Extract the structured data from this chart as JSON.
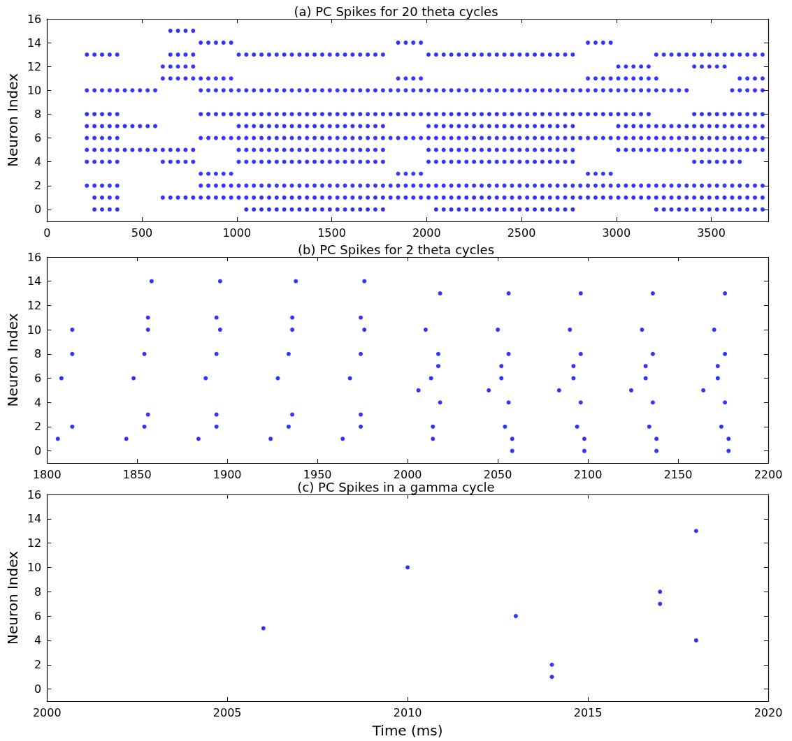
{
  "chart_data": [
    {
      "type": "scatter",
      "title": "(a) PC Spikes for 20 theta cycles",
      "ylabel": "Neuron Index",
      "xlim": [
        0,
        3800
      ],
      "xticks": [
        0,
        500,
        1000,
        1500,
        2000,
        2500,
        3000,
        3500
      ],
      "ylim": [
        -1,
        16
      ],
      "yticks": [
        0,
        2,
        4,
        6,
        8,
        10,
        12,
        14,
        16
      ],
      "grid": false,
      "marker": "circle",
      "series": [
        {
          "color": "#0000ff",
          "x": [
            650,
            690,
            730,
            770
          ],
          "values": [
            15,
            15,
            15,
            15
          ]
        },
        {
          "color": "#0000ff",
          "x": [
            810,
            850,
            890,
            930,
            970,
            1850,
            1890,
            1930,
            1970,
            2850,
            2890,
            2930,
            2970
          ],
          "values": [
            14,
            14,
            14,
            14,
            14,
            14,
            14,
            14,
            14,
            14,
            14,
            14,
            14
          ]
        },
        {
          "color": "#0000ff",
          "x": [
            210,
            250,
            290,
            330,
            370,
            650,
            690,
            730,
            770,
            1010,
            1050,
            1090,
            1130,
            1170,
            1210,
            1250,
            1290,
            1330,
            1370,
            1410,
            1450,
            1490,
            1530,
            1570,
            1610,
            1650,
            1690,
            1730,
            1770,
            2010,
            2050,
            2090,
            2130,
            2170,
            2210,
            2250,
            2290,
            2330,
            2370,
            2410,
            2450,
            2490,
            2530,
            2570,
            2610,
            2650,
            2690,
            2730,
            2770,
            3210,
            3250,
            3290,
            3330,
            3370,
            3410,
            3450,
            3490,
            3530,
            3570,
            3610,
            3650,
            3690,
            3730,
            3770
          ],
          "values": [
            13,
            13,
            13,
            13,
            13,
            13,
            13,
            13,
            13,
            13,
            13,
            13,
            13,
            13,
            13,
            13,
            13,
            13,
            13,
            13,
            13,
            13,
            13,
            13,
            13,
            13,
            13,
            13,
            13,
            13,
            13,
            13,
            13,
            13,
            13,
            13,
            13,
            13,
            13,
            13,
            13,
            13,
            13,
            13,
            13,
            13,
            13,
            13,
            13,
            13,
            13,
            13,
            13,
            13,
            13,
            13,
            13,
            13,
            13,
            13,
            13,
            13,
            13,
            13
          ]
        },
        {
          "color": "#0000ff",
          "x": [
            610,
            650,
            690,
            730,
            770,
            3010,
            3050,
            3090,
            3130,
            3170,
            3410,
            3450,
            3490,
            3530,
            3570
          ],
          "values": [
            12,
            12,
            12,
            12,
            12,
            12,
            12,
            12,
            12,
            12,
            12,
            12,
            12,
            12,
            12
          ]
        },
        {
          "color": "#0000ff",
          "x": [
            610,
            650,
            690,
            730,
            770,
            810,
            850,
            890,
            930,
            970,
            1850,
            1890,
            1930,
            1970,
            2850,
            2890,
            2930,
            2970,
            3010,
            3050,
            3090,
            3130,
            3170,
            3210,
            3650,
            3690,
            3730,
            3770
          ],
          "values": [
            11,
            11,
            11,
            11,
            11,
            11,
            11,
            11,
            11,
            11,
            11,
            11,
            11,
            11,
            11,
            11,
            11,
            11,
            11,
            11,
            11,
            11,
            11,
            11,
            11,
            11,
            11,
            11
          ]
        },
        {
          "color": "#0000ff",
          "x": [
            210,
            250,
            290,
            330,
            370,
            410,
            450,
            490,
            530,
            570,
            810,
            850,
            890,
            930,
            970,
            1010,
            1050,
            1090,
            1130,
            1170,
            1210,
            1250,
            1290,
            1330,
            1370,
            1410,
            1450,
            1490,
            1530,
            1570,
            1610,
            1650,
            1690,
            1730,
            1770,
            1810,
            1850,
            1890,
            1930,
            1970,
            2010,
            2050,
            2090,
            2130,
            2170,
            2210,
            2250,
            2290,
            2330,
            2370,
            2410,
            2450,
            2490,
            2530,
            2570,
            2610,
            2650,
            2690,
            2730,
            2770,
            2810,
            2850,
            2890,
            2930,
            2970,
            3010,
            3050,
            3090,
            3130,
            3170,
            3210,
            3250,
            3290,
            3330,
            3370,
            3610,
            3650,
            3690,
            3730,
            3770
          ],
          "values": [
            10,
            10,
            10,
            10,
            10,
            10,
            10,
            10,
            10,
            10,
            10,
            10,
            10,
            10,
            10,
            10,
            10,
            10,
            10,
            10,
            10,
            10,
            10,
            10,
            10,
            10,
            10,
            10,
            10,
            10,
            10,
            10,
            10,
            10,
            10,
            10,
            10,
            10,
            10,
            10,
            10,
            10,
            10,
            10,
            10,
            10,
            10,
            10,
            10,
            10,
            10,
            10,
            10,
            10,
            10,
            10,
            10,
            10,
            10,
            10,
            10,
            10,
            10,
            10,
            10,
            10,
            10,
            10,
            10,
            10,
            10,
            10,
            10,
            10,
            10,
            10,
            10,
            10,
            10,
            10
          ]
        },
        {
          "color": "#0000ff",
          "x": [
            210,
            250,
            290,
            330,
            370,
            810,
            850,
            890,
            930,
            970,
            1010,
            1050,
            1090,
            1130,
            1170,
            1210,
            1250,
            1290,
            1330,
            1370,
            1410,
            1450,
            1490,
            1530,
            1570,
            1610,
            1650,
            1690,
            1730,
            1770,
            1810,
            1850,
            1890,
            1930,
            1970,
            2010,
            2050,
            2090,
            2130,
            2170,
            2210,
            2250,
            2290,
            2330,
            2370,
            2410,
            2450,
            2490,
            2530,
            2570,
            2610,
            2650,
            2690,
            2730,
            2770,
            2810,
            2850,
            2890,
            2930,
            2970,
            3010,
            3050,
            3090,
            3130,
            3170,
            3410,
            3450,
            3490,
            3530,
            3570,
            3610,
            3650,
            3690,
            3730,
            3770
          ],
          "values": [
            8,
            8,
            8,
            8,
            8,
            8,
            8,
            8,
            8,
            8,
            8,
            8,
            8,
            8,
            8,
            8,
            8,
            8,
            8,
            8,
            8,
            8,
            8,
            8,
            8,
            8,
            8,
            8,
            8,
            8,
            8,
            8,
            8,
            8,
            8,
            8,
            8,
            8,
            8,
            8,
            8,
            8,
            8,
            8,
            8,
            8,
            8,
            8,
            8,
            8,
            8,
            8,
            8,
            8,
            8,
            8,
            8,
            8,
            8,
            8,
            8,
            8,
            8,
            8,
            8,
            8,
            8,
            8,
            8,
            8,
            8,
            8,
            8,
            8,
            8
          ]
        },
        {
          "color": "#0000ff",
          "x": [
            210,
            250,
            290,
            330,
            370,
            410,
            450,
            490,
            530,
            570,
            1010,
            1050,
            1090,
            1130,
            1170,
            1210,
            1250,
            1290,
            1330,
            1370,
            1410,
            1450,
            1490,
            1530,
            1570,
            1610,
            1650,
            1690,
            1730,
            1770,
            2010,
            2050,
            2090,
            2130,
            2170,
            2210,
            2250,
            2290,
            2330,
            2370,
            2410,
            2450,
            2490,
            2530,
            2570,
            2610,
            2650,
            2690,
            2730,
            2770,
            3010,
            3050,
            3090,
            3130,
            3170,
            3210,
            3250,
            3290,
            3330,
            3370,
            3410,
            3450,
            3490,
            3530,
            3570,
            3610,
            3650,
            3690,
            3730,
            3770
          ],
          "values": [
            7,
            7,
            7,
            7,
            7,
            7,
            7,
            7,
            7,
            7,
            7,
            7,
            7,
            7,
            7,
            7,
            7,
            7,
            7,
            7,
            7,
            7,
            7,
            7,
            7,
            7,
            7,
            7,
            7,
            7,
            7,
            7,
            7,
            7,
            7,
            7,
            7,
            7,
            7,
            7,
            7,
            7,
            7,
            7,
            7,
            7,
            7,
            7,
            7,
            7,
            7,
            7,
            7,
            7,
            7,
            7,
            7,
            7,
            7,
            7,
            7,
            7,
            7,
            7,
            7,
            7,
            7,
            7,
            7,
            7
          ]
        },
        {
          "color": "#0000ff",
          "x": [
            210,
            250,
            290,
            330,
            370,
            810,
            850,
            890,
            930,
            970,
            1010,
            1050,
            1090,
            1130,
            1170,
            1210,
            1250,
            1290,
            1330,
            1370,
            1410,
            1450,
            1490,
            1530,
            1570,
            1610,
            1650,
            1690,
            1730,
            1770,
            1810,
            1850,
            1890,
            1930,
            1970,
            2010,
            2050,
            2090,
            2130,
            2170,
            2210,
            2250,
            2290,
            2330,
            2370,
            2410,
            2450,
            2490,
            2530,
            2570,
            2610,
            2650,
            2690,
            2730,
            2770,
            2810,
            2850,
            2890,
            2930,
            2970,
            3010,
            3050,
            3090,
            3130,
            3170,
            3210,
            3250,
            3290,
            3330,
            3370,
            3410,
            3450,
            3490,
            3530,
            3570,
            3610,
            3650,
            3690,
            3730,
            3770
          ],
          "values": [
            6,
            6,
            6,
            6,
            6,
            6,
            6,
            6,
            6,
            6,
            6,
            6,
            6,
            6,
            6,
            6,
            6,
            6,
            6,
            6,
            6,
            6,
            6,
            6,
            6,
            6,
            6,
            6,
            6,
            6,
            6,
            6,
            6,
            6,
            6,
            6,
            6,
            6,
            6,
            6,
            6,
            6,
            6,
            6,
            6,
            6,
            6,
            6,
            6,
            6,
            6,
            6,
            6,
            6,
            6,
            6,
            6,
            6,
            6,
            6,
            6,
            6,
            6,
            6,
            6,
            6,
            6,
            6,
            6,
            6,
            6,
            6,
            6,
            6,
            6,
            6,
            6,
            6,
            6,
            6
          ]
        },
        {
          "color": "#0000ff",
          "x": [
            210,
            250,
            290,
            330,
            370,
            410,
            450,
            490,
            530,
            570,
            610,
            650,
            690,
            730,
            770,
            1010,
            1050,
            1090,
            1130,
            1170,
            1210,
            1250,
            1290,
            1330,
            1370,
            1410,
            1450,
            1490,
            1530,
            1570,
            1610,
            1650,
            1690,
            1730,
            1770,
            2010,
            2050,
            2090,
            2130,
            2170,
            2210,
            2250,
            2290,
            2330,
            2370,
            2410,
            2450,
            2490,
            2530,
            2570,
            2610,
            2650,
            2690,
            2730,
            2770,
            3010,
            3050,
            3090,
            3130,
            3170,
            3210,
            3250,
            3290,
            3330,
            3370,
            3410,
            3450,
            3490,
            3530,
            3570,
            3610,
            3650,
            3690,
            3730,
            3770
          ],
          "values": [
            5,
            5,
            5,
            5,
            5,
            5,
            5,
            5,
            5,
            5,
            5,
            5,
            5,
            5,
            5,
            5,
            5,
            5,
            5,
            5,
            5,
            5,
            5,
            5,
            5,
            5,
            5,
            5,
            5,
            5,
            5,
            5,
            5,
            5,
            5,
            5,
            5,
            5,
            5,
            5,
            5,
            5,
            5,
            5,
            5,
            5,
            5,
            5,
            5,
            5,
            5,
            5,
            5,
            5,
            5,
            5,
            5,
            5,
            5,
            5,
            5,
            5,
            5,
            5,
            5,
            5,
            5,
            5,
            5,
            5,
            5,
            5,
            5,
            5,
            5
          ]
        },
        {
          "color": "#0000ff",
          "x": [
            210,
            250,
            290,
            330,
            370,
            610,
            650,
            690,
            730,
            770,
            1010,
            1050,
            1090,
            1130,
            1170,
            1210,
            1250,
            1290,
            1330,
            1370,
            1410,
            1450,
            1490,
            1530,
            1570,
            1610,
            1650,
            1690,
            1730,
            1770,
            2010,
            2050,
            2090,
            2130,
            2170,
            2210,
            2250,
            2290,
            2330,
            2370,
            2410,
            2450,
            2490,
            2530,
            2570,
            2610,
            2650,
            2690,
            2730,
            2770,
            3410,
            3450,
            3490,
            3530,
            3570,
            3610,
            3650
          ],
          "values": [
            4,
            4,
            4,
            4,
            4,
            4,
            4,
            4,
            4,
            4,
            4,
            4,
            4,
            4,
            4,
            4,
            4,
            4,
            4,
            4,
            4,
            4,
            4,
            4,
            4,
            4,
            4,
            4,
            4,
            4,
            4,
            4,
            4,
            4,
            4,
            4,
            4,
            4,
            4,
            4,
            4,
            4,
            4,
            4,
            4,
            4,
            4,
            4,
            4,
            4,
            4,
            4,
            4,
            4,
            4,
            4,
            4
          ]
        },
        {
          "color": "#0000ff",
          "x": [
            810,
            850,
            890,
            930,
            970,
            1850,
            1890,
            1930,
            1970,
            2850,
            2890,
            2930,
            2970
          ],
          "values": [
            3,
            3,
            3,
            3,
            3,
            3,
            3,
            3,
            3,
            3,
            3,
            3,
            3
          ]
        },
        {
          "color": "#0000ff",
          "x": [
            210,
            250,
            290,
            330,
            370,
            810,
            850,
            890,
            930,
            970,
            1010,
            1050,
            1090,
            1130,
            1170,
            1210,
            1250,
            1290,
            1330,
            1370,
            1410,
            1450,
            1490,
            1530,
            1570,
            1610,
            1650,
            1690,
            1730,
            1770,
            1810,
            1850,
            1890,
            1930,
            1970,
            2010,
            2050,
            2090,
            2130,
            2170,
            2210,
            2250,
            2290,
            2330,
            2370,
            2410,
            2450,
            2490,
            2530,
            2570,
            2610,
            2650,
            2690,
            2730,
            2770,
            2810,
            2850,
            2890,
            2930,
            2970,
            3010,
            3050,
            3090,
            3130,
            3170,
            3210,
            3250,
            3290,
            3330,
            3370,
            3410,
            3450,
            3490,
            3530,
            3570,
            3610,
            3650,
            3690,
            3730,
            3770
          ],
          "values": [
            2,
            2,
            2,
            2,
            2,
            2,
            2,
            2,
            2,
            2,
            2,
            2,
            2,
            2,
            2,
            2,
            2,
            2,
            2,
            2,
            2,
            2,
            2,
            2,
            2,
            2,
            2,
            2,
            2,
            2,
            2,
            2,
            2,
            2,
            2,
            2,
            2,
            2,
            2,
            2,
            2,
            2,
            2,
            2,
            2,
            2,
            2,
            2,
            2,
            2,
            2,
            2,
            2,
            2,
            2,
            2,
            2,
            2,
            2,
            2,
            2,
            2,
            2,
            2,
            2,
            2,
            2,
            2,
            2,
            2,
            2,
            2,
            2,
            2,
            2,
            2,
            2,
            2,
            2,
            2
          ]
        },
        {
          "color": "#0000ff",
          "x": [
            250,
            290,
            330,
            370,
            610,
            650,
            690,
            730,
            770,
            810,
            850,
            890,
            930,
            970,
            1010,
            1050,
            1090,
            1130,
            1170,
            1210,
            1250,
            1290,
            1330,
            1370,
            1410,
            1450,
            1490,
            1530,
            1570,
            1610,
            1650,
            1690,
            1730,
            1770,
            1810,
            1850,
            1890,
            1930,
            1970,
            2010,
            2050,
            2090,
            2130,
            2170,
            2210,
            2250,
            2290,
            2330,
            2370,
            2410,
            2450,
            2490,
            2530,
            2570,
            2610,
            2650,
            2690,
            2730,
            2770,
            2810,
            2850,
            2890,
            2930,
            2970,
            3010,
            3050,
            3090,
            3130,
            3170,
            3210,
            3250,
            3290,
            3330,
            3370,
            3410,
            3450,
            3490,
            3530,
            3570,
            3610,
            3650,
            3690,
            3730,
            3770
          ],
          "values": [
            1,
            1,
            1,
            1,
            1,
            1,
            1,
            1,
            1,
            1,
            1,
            1,
            1,
            1,
            1,
            1,
            1,
            1,
            1,
            1,
            1,
            1,
            1,
            1,
            1,
            1,
            1,
            1,
            1,
            1,
            1,
            1,
            1,
            1,
            1,
            1,
            1,
            1,
            1,
            1,
            1,
            1,
            1,
            1,
            1,
            1,
            1,
            1,
            1,
            1,
            1,
            1,
            1,
            1,
            1,
            1,
            1,
            1,
            1,
            1,
            1,
            1,
            1,
            1,
            1,
            1,
            1,
            1,
            1,
            1,
            1,
            1,
            1,
            1,
            1,
            1,
            1,
            1,
            1,
            1,
            1,
            1,
            1,
            1
          ]
        },
        {
          "color": "#0000ff",
          "x": [
            250,
            290,
            330,
            370,
            1050,
            1090,
            1130,
            1170,
            1210,
            1250,
            1290,
            1330,
            1370,
            1410,
            1450,
            1490,
            1530,
            1570,
            1610,
            1650,
            1690,
            1730,
            1770,
            2050,
            2090,
            2130,
            2170,
            2210,
            2250,
            2290,
            2330,
            2370,
            2410,
            2450,
            2490,
            2530,
            2570,
            2610,
            2650,
            2690,
            2730,
            2770,
            3210,
            3250,
            3290,
            3330,
            3370,
            3410,
            3450,
            3490,
            3530,
            3570,
            3610,
            3650,
            3690,
            3730,
            3770
          ],
          "values": [
            0,
            0,
            0,
            0,
            0,
            0,
            0,
            0,
            0,
            0,
            0,
            0,
            0,
            0,
            0,
            0,
            0,
            0,
            0,
            0,
            0,
            0,
            0,
            0,
            0,
            0,
            0,
            0,
            0,
            0,
            0,
            0,
            0,
            0,
            0,
            0,
            0,
            0,
            0,
            0,
            0,
            0,
            0,
            0,
            0,
            0,
            0,
            0,
            0,
            0,
            0,
            0,
            0,
            0,
            0,
            0,
            0
          ]
        }
      ]
    },
    {
      "type": "scatter",
      "title": "(b) PC Spikes for 2 theta cycles",
      "ylabel": "Neuron Index",
      "xlim": [
        1800,
        2200
      ],
      "xticks": [
        1800,
        1850,
        1900,
        1950,
        2000,
        2050,
        2100,
        2150,
        2200
      ],
      "ylim": [
        -1,
        16
      ],
      "yticks": [
        0,
        2,
        4,
        6,
        8,
        10,
        12,
        14,
        16
      ],
      "grid": false,
      "marker": "circle",
      "series": [
        {
          "color": "#0000ff",
          "x": [
            1806,
            1808,
            1814,
            1814,
            1814,
            1844,
            1848,
            1854,
            1854,
            1856,
            1856,
            1856,
            1858,
            1884,
            1888,
            1894,
            1894,
            1894,
            1896,
            1894,
            1896,
            1924,
            1928,
            1934,
            1934,
            1936,
            1936,
            1936,
            1938,
            1964,
            1968,
            1974,
            1974,
            1974,
            1976,
            1974,
            1976,
            2006,
            2010,
            2013,
            2014,
            2014,
            2017,
            2017,
            2018,
            2018,
            2045,
            2050,
            2052,
            2052,
            2054,
            2056,
            2056,
            2056,
            2058,
            2058,
            2084,
            2090,
            2092,
            2092,
            2094,
            2096,
            2096,
            2096,
            2098,
            2098,
            2124,
            2130,
            2132,
            2132,
            2134,
            2136,
            2136,
            2136,
            2138,
            2138,
            2164,
            2170,
            2172,
            2172,
            2174,
            2176,
            2176,
            2176,
            2178,
            2178
          ],
          "values": [
            1,
            6,
            2,
            8,
            10,
            1,
            6,
            2,
            8,
            3,
            10,
            11,
            14,
            1,
            6,
            2,
            8,
            3,
            10,
            11,
            14,
            1,
            6,
            2,
            8,
            3,
            10,
            11,
            14,
            1,
            6,
            2,
            8,
            3,
            10,
            11,
            14,
            5,
            10,
            6,
            1,
            2,
            7,
            8,
            4,
            13,
            5,
            10,
            6,
            7,
            2,
            8,
            4,
            13,
            1,
            0,
            5,
            10,
            6,
            7,
            2,
            8,
            4,
            13,
            1,
            0,
            5,
            10,
            6,
            7,
            2,
            8,
            4,
            13,
            1,
            0,
            5,
            10,
            6,
            7,
            2,
            8,
            4,
            13,
            1,
            0
          ]
        }
      ]
    },
    {
      "type": "scatter",
      "title": "(c) PC Spikes in a gamma cycle",
      "xlabel": "Time (ms)",
      "ylabel": "Neuron Index",
      "xlim": [
        2000,
        2020
      ],
      "xticks": [
        2000,
        2005,
        2010,
        2015,
        2020
      ],
      "ylim": [
        -1,
        16
      ],
      "yticks": [
        0,
        2,
        4,
        6,
        8,
        10,
        12,
        14,
        16
      ],
      "grid": false,
      "marker": "circle",
      "series": [
        {
          "color": "#0000ff",
          "x": [
            2006,
            2010,
            2013,
            2014,
            2014,
            2017,
            2017,
            2018,
            2018
          ],
          "values": [
            5,
            10,
            6,
            1,
            2,
            7,
            8,
            4,
            13
          ]
        }
      ]
    }
  ]
}
